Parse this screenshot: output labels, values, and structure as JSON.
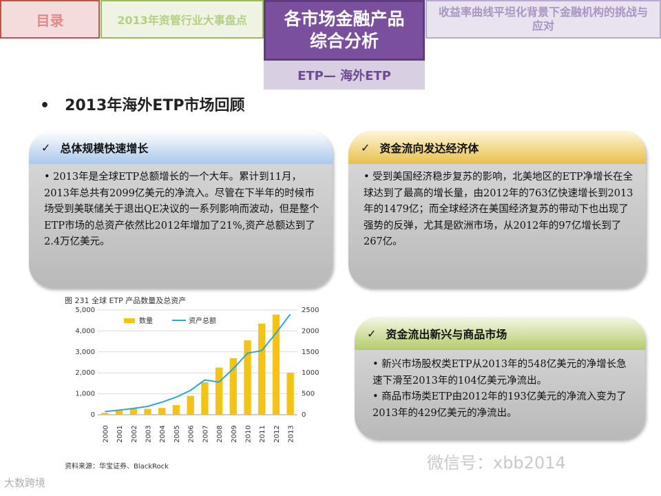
{
  "nav": {
    "tab1": "目录",
    "tab2": "2013年资管行业大事盘点",
    "tab3_line1": "各市场金融产品",
    "tab3_line2": "综合分析",
    "tab4": "收益率曲线平坦化背景下金融机构的挑战与应对",
    "subtab": "ETP— 海外ETP"
  },
  "heading": {
    "bullet": "•",
    "text": "2013年海外ETP市场回顾"
  },
  "panels": {
    "p1": {
      "title": "总体规模快速增长",
      "body": "• 2013年是全球ETP总额增长的一个大年。累计到11月，2013年总共有2099亿美元的净流入。尽管在下半年的时候市场受到美联储关于退出QE决议的一系列影响而波动，但是整个ETP市场的总资产依然比2012年增加了21%,资产总额达到了2.4万亿美元。"
    },
    "p2": {
      "title": "资金流向发达经济体",
      "body": "• 受到美国经济稳步复苏的影响，北美地区的ETP净增长在全球达到了最高的增长量，由2012年的763亿快速增长到2013年的1479亿；而全球经济在美国经济复苏的带动下也出现了强势的反弹，尤其是欧洲市场，从2012年的97亿增长到了267亿。"
    },
    "p3": {
      "title": "资金流出新兴与商品市场",
      "body1": "• 新兴市场股权类ETP从2013年的548亿美元的净增长急速下滑至2013年的104亿美元净流出。",
      "body2": "• 商品市场类ETP由2012年的193亿美元的净流入变为了2013年的429亿美元的净流出。"
    },
    "check": "✓"
  },
  "figure": {
    "title": "图 231   全球 ETP 产品数量及总资产",
    "source": "资料来源：华宝证券、BlackRock"
  },
  "chart_data": {
    "type": "bar",
    "categories": [
      "2000",
      "2001",
      "2002",
      "2003",
      "2004",
      "2005",
      "2006",
      "2007",
      "2008",
      "2009",
      "2010",
      "2011",
      "2012",
      "2013"
    ],
    "series": [
      {
        "name": "数量",
        "kind": "bar",
        "axis": "left",
        "color": "#f3c316",
        "values": [
          90,
          200,
          280,
          280,
          320,
          460,
          900,
          1550,
          2250,
          2700,
          3550,
          4350,
          4780,
          2000
        ]
      },
      {
        "name": "资产总额",
        "kind": "line",
        "axis": "right",
        "color": "#2aa7d6",
        "values": [
          75,
          110,
          150,
          200,
          300,
          420,
          580,
          830,
          780,
          1100,
          1470,
          1530,
          1950,
          2400
        ]
      }
    ],
    "y_left": {
      "min": 0,
      "max": 5000,
      "ticks": [
        "0",
        "1,000",
        "2,000",
        "3,000",
        "4,000",
        "5,000"
      ]
    },
    "y_right": {
      "min": 0,
      "max": 2500,
      "ticks": [
        "0",
        "500",
        "1000",
        "1500",
        "2000",
        "2500"
      ]
    },
    "legend_position": "top-left",
    "grid": true
  },
  "watermark": "微信号：xbb2014",
  "logo": "大数跨境"
}
